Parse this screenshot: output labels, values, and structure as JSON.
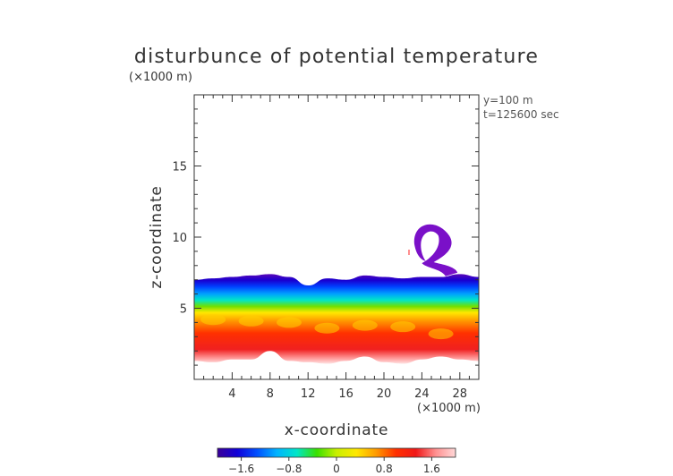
{
  "chart_data": {
    "type": "heatmap",
    "title": "disturbunce of potential temperature",
    "unit_label": "(×1000 m)",
    "annotations": [
      "y=100 m",
      "t=125600 sec"
    ],
    "xlabel": "x-coordinate",
    "ylabel": "z-coordinate",
    "x_unit_label": "(×1000 m)",
    "xlim": [
      0,
      30
    ],
    "ylim": [
      0,
      20
    ],
    "x_ticks": [
      4,
      8,
      12,
      16,
      20,
      24,
      28
    ],
    "y_ticks": [
      5,
      10,
      15
    ],
    "colorbar": {
      "ticks": [
        -1.6,
        -0.8,
        0,
        0.8,
        1.6
      ],
      "tick_labels": [
        "−1.6",
        "−0.8",
        "0",
        "0.8",
        "1.6"
      ],
      "range": [
        -2.0,
        2.0
      ],
      "colors": [
        "#3a0098",
        "#1000d8",
        "#0050ff",
        "#00b4ff",
        "#00e6c8",
        "#38e000",
        "#c8f000",
        "#ffe800",
        "#ff9a00",
        "#ff3000",
        "#f01818",
        "#ff9090",
        "#ffd8d8"
      ]
    },
    "field": {
      "x": [
        0,
        2,
        4,
        6,
        8,
        10,
        12,
        14,
        16,
        18,
        20,
        22,
        24,
        26,
        28,
        30
      ],
      "top_boundary_z": [
        7.0,
        7.1,
        7.2,
        7.3,
        7.4,
        7.2,
        6.6,
        7.1,
        7.0,
        7.3,
        7.2,
        7.1,
        7.2,
        7.2,
        7.4,
        7.2
      ],
      "core_z": [
        4.2,
        4.2,
        4.3,
        4.1,
        4.3,
        4.0,
        3.9,
        3.6,
        3.4,
        3.8,
        3.9,
        3.7,
        3.4,
        3.2,
        3.6,
        3.8
      ],
      "bottom_boundary_z": [
        1.3,
        1.2,
        1.4,
        1.4,
        2.0,
        1.3,
        1.2,
        1.1,
        1.3,
        1.6,
        1.2,
        1.1,
        1.4,
        1.6,
        1.4,
        1.3
      ]
    },
    "plume": {
      "x_range": [
        22.5,
        27.5
      ],
      "z_range": [
        7.5,
        11.2
      ]
    }
  }
}
